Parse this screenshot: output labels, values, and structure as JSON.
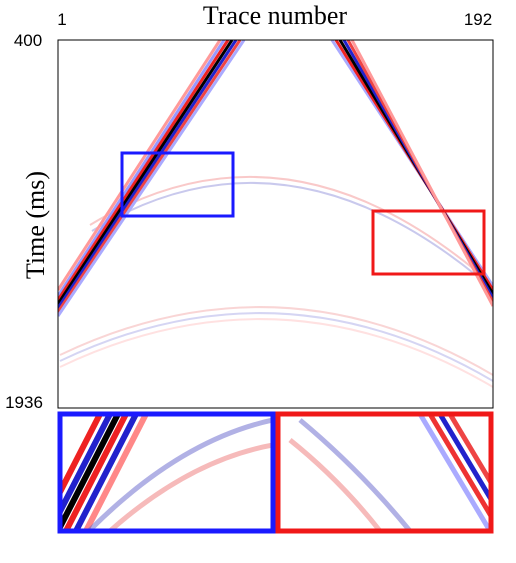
{
  "figure": {
    "title": "Trace number",
    "y_label": "Time (ms)",
    "x_start": 1,
    "x_end": 192,
    "y_start": 400,
    "y_end": 1936
  }
}
